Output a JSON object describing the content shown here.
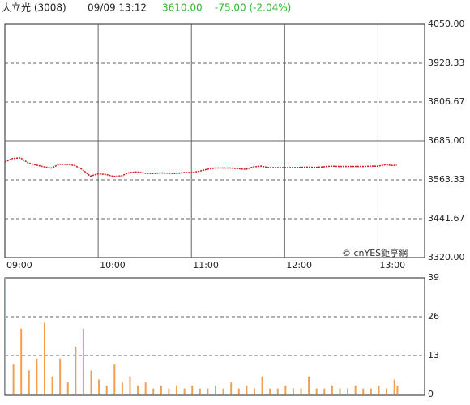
{
  "header": {
    "name": "大立光 (3008)",
    "datetime": "09/09 13:12",
    "price": "3610.00",
    "change": "-75.00 (-2.04%)"
  },
  "watermark": "© cnYES鉅亨網",
  "chart_data": [
    {
      "type": "line",
      "color": "#cc2222",
      "grid": true,
      "reference_line": 3685,
      "x": [
        "09:00",
        "09:05",
        "09:10",
        "09:15",
        "09:20",
        "09:25",
        "09:30",
        "09:35",
        "09:40",
        "09:45",
        "09:50",
        "09:55",
        "10:00",
        "10:05",
        "10:10",
        "10:15",
        "10:20",
        "10:25",
        "10:30",
        "10:35",
        "10:40",
        "10:45",
        "10:50",
        "10:55",
        "11:00",
        "11:05",
        "11:10",
        "11:15",
        "11:20",
        "11:25",
        "11:30",
        "11:35",
        "11:40",
        "11:45",
        "11:50",
        "11:55",
        "12:00",
        "12:05",
        "12:10",
        "12:15",
        "12:20",
        "12:25",
        "12:30",
        "12:35",
        "12:40",
        "12:45",
        "12:50",
        "12:55",
        "13:00",
        "13:05",
        "13:10",
        "13:12"
      ],
      "values": [
        3619,
        3630,
        3632,
        3616,
        3610,
        3604,
        3600,
        3612,
        3612,
        3608,
        3595,
        3575,
        3582,
        3580,
        3574,
        3576,
        3586,
        3588,
        3584,
        3583,
        3585,
        3584,
        3583,
        3586,
        3586,
        3590,
        3596,
        3600,
        3600,
        3600,
        3598,
        3596,
        3604,
        3606,
        3601,
        3601,
        3601,
        3601,
        3602,
        3603,
        3602,
        3604,
        3606,
        3605,
        3605,
        3605,
        3605,
        3606,
        3606,
        3611,
        3608,
        3610
      ],
      "xlim": [
        "09:00",
        "13:30"
      ],
      "xticks": [
        "09:00",
        "10:00",
        "11:00",
        "12:00",
        "13:00"
      ],
      "ylim": [
        3320,
        4050
      ],
      "yticks": [
        {
          "value": 4050,
          "label": "4050.00"
        },
        3928.33,
        3806.67,
        {
          "value": 3685,
          "label": "3685.00"
        },
        3563.33,
        3441.67,
        {
          "value": 3320,
          "label": "3320.00"
        }
      ]
    },
    {
      "type": "bar",
      "color": "#f0a050",
      "grid": true,
      "x": [
        "09:00",
        "09:05",
        "09:10",
        "09:15",
        "09:20",
        "09:25",
        "09:30",
        "09:35",
        "09:40",
        "09:45",
        "09:50",
        "09:55",
        "10:00",
        "10:05",
        "10:10",
        "10:15",
        "10:20",
        "10:25",
        "10:30",
        "10:35",
        "10:40",
        "10:45",
        "10:50",
        "10:55",
        "11:00",
        "11:05",
        "11:10",
        "11:15",
        "11:20",
        "11:25",
        "11:30",
        "11:35",
        "11:40",
        "11:45",
        "11:50",
        "11:55",
        "12:00",
        "12:05",
        "12:10",
        "12:15",
        "12:20",
        "12:25",
        "12:30",
        "12:35",
        "12:40",
        "12:45",
        "12:50",
        "12:55",
        "13:00",
        "13:05",
        "13:10",
        "13:12"
      ],
      "values": [
        39,
        10,
        22,
        8,
        12,
        24,
        6,
        12,
        4,
        16,
        22,
        8,
        5,
        3,
        10,
        4,
        6,
        3,
        4,
        2,
        3,
        2,
        3,
        2,
        3,
        2,
        2,
        3,
        2,
        4,
        2,
        3,
        2,
        6,
        2,
        2,
        3,
        2,
        2,
        6,
        2,
        2,
        3,
        2,
        2,
        3,
        2,
        2,
        3,
        2,
        5,
        3
      ],
      "xlim": [
        "09:00",
        "13:30"
      ],
      "ylim": [
        0,
        39
      ],
      "yticks": [
        39,
        26,
        13,
        0
      ]
    }
  ]
}
